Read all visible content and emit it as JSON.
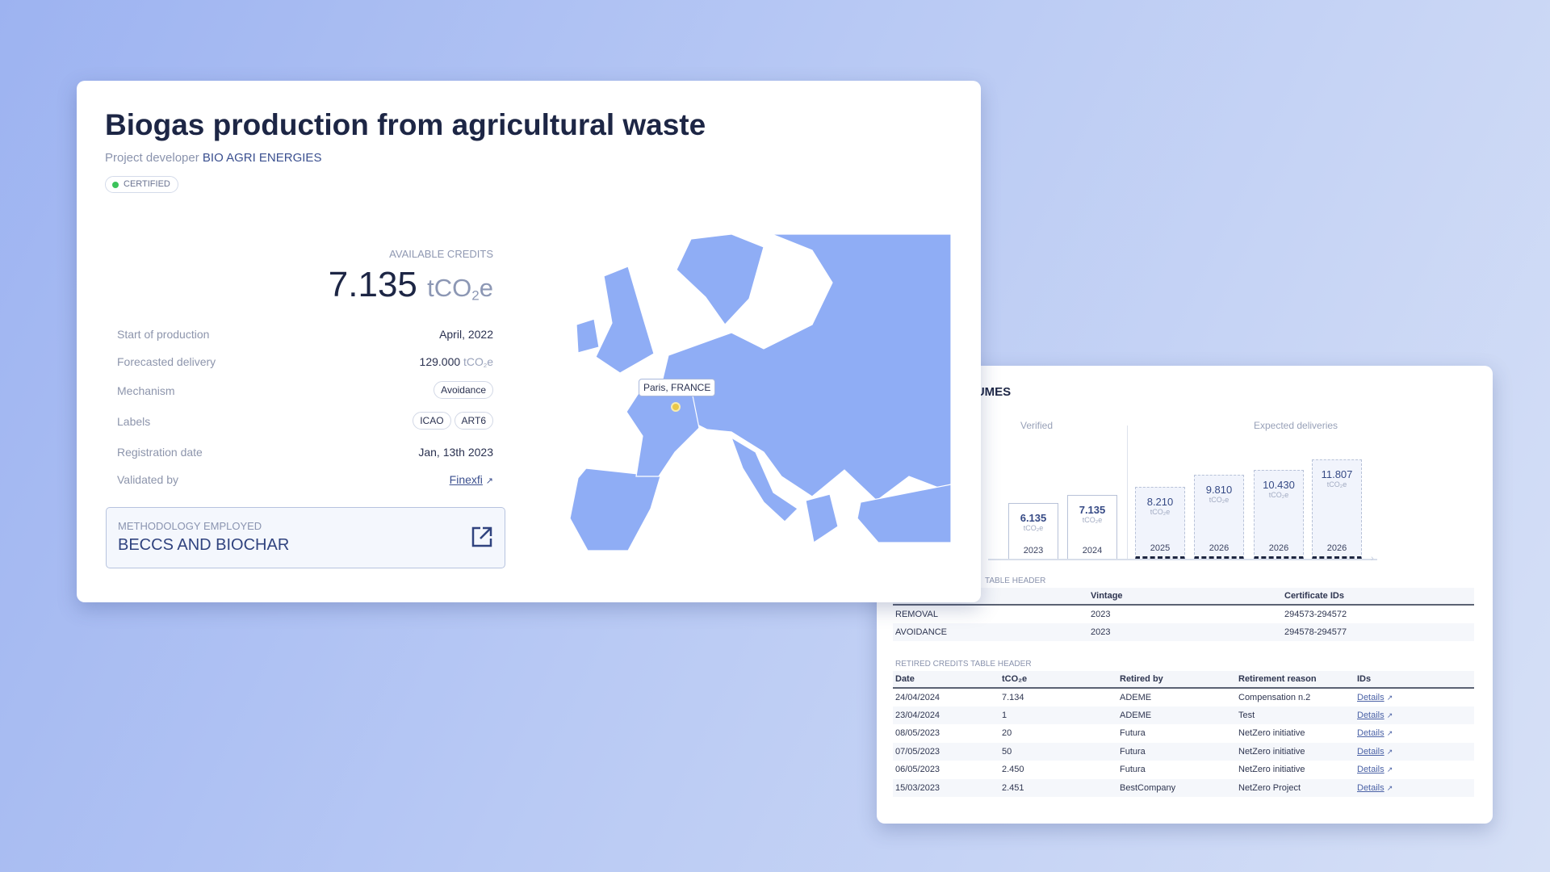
{
  "project": {
    "title": "Biogas production from agricultural waste",
    "developer_prefix": "Project developer",
    "developer_name": "BIO AGRI ENERGIES",
    "status_badge": "CERTIFIED",
    "status_color": "#3cc35b"
  },
  "credits": {
    "label": "AVAILABLE CREDITS",
    "value": "7.135",
    "unit_t": "tCO",
    "unit_sub": "2",
    "unit_e": "e"
  },
  "details": {
    "start_label": "Start of production",
    "start_value": "April, 2022",
    "forecast_label": "Forecasted delivery",
    "forecast_value": "129.000",
    "mechanism_label": "Mechanism",
    "mechanism_value": "Avoidance",
    "labels_label": "Labels",
    "labels": [
      "ICAO",
      "ART6"
    ],
    "registration_label": "Registration date",
    "registration_value": "Jan, 13th 2023",
    "validated_label": "Validated by",
    "validated_value": "Finexfi"
  },
  "methodology": {
    "label": "METHODOLOGY EMPLOYED",
    "name": "BECCS AND BIOCHAR"
  },
  "map": {
    "pin_label": "Paris, FRANCE",
    "land_color": "#8fadf5"
  },
  "volumes": {
    "title": "CREDITS VOLUMES",
    "verified_label": "Verified",
    "expected_label": "Expected deliveries",
    "unit": "tCO₂e"
  },
  "chart_data": {
    "type": "bar",
    "categories": [
      "2023",
      "2024",
      "2025",
      "2026",
      "2026",
      "2026"
    ],
    "values": [
      6.135,
      7.135,
      8.21,
      9.81,
      10.43,
      11.807
    ],
    "labels": [
      "6.135",
      "7.135",
      "8.210",
      "9.810",
      "10.430",
      "11.807"
    ],
    "groups": [
      "verified",
      "verified",
      "expected",
      "expected",
      "expected",
      "expected"
    ]
  },
  "certificates": {
    "section_label": "TABLE HEADER",
    "headers": [
      "",
      "Vintage",
      "Certificate IDs"
    ],
    "rows": [
      [
        "REMOVAL",
        "2023",
        "294573-294572"
      ],
      [
        "AVOIDANCE",
        "2023",
        "294578-294577"
      ]
    ]
  },
  "retired": {
    "section_label": "RETIRED CREDITS  TABLE HEADER",
    "headers": [
      "Date",
      "tCO₂e",
      "Retired by",
      "Retirement reason",
      "IDs"
    ],
    "rows": [
      [
        "24/04/2024",
        "7.134",
        "ADEME",
        "Compensation n.2",
        "Details"
      ],
      [
        "23/04/2024",
        "1",
        "ADEME",
        "Test",
        "Details"
      ],
      [
        "08/05/2023",
        "20",
        "Futura",
        "NetZero initiative",
        "Details"
      ],
      [
        "07/05/2023",
        "50",
        "Futura",
        "NetZero initiative",
        "Details"
      ],
      [
        "06/05/2023",
        "2.450",
        "Futura",
        "NetZero initiative",
        "Details"
      ],
      [
        "15/03/2023",
        "2.451",
        "BestCompany",
        "NetZero Project",
        "Details"
      ]
    ]
  }
}
